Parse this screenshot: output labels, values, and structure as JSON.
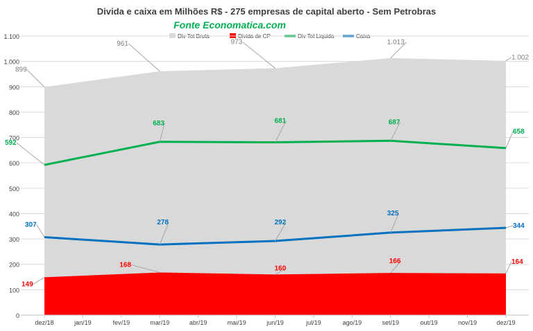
{
  "chart_data": {
    "type": "area",
    "title": "Divida e caixa em Milhões R$ - 275 empresas de capital aberto - Sem Petrobras",
    "subtitle": "Fonte Economatica.com",
    "categories": [
      "dez/18",
      "jan/19",
      "fev/19",
      "mar/19",
      "abr/19",
      "mai/19",
      "jun/19",
      "jul/19",
      "ago/19",
      "set/19",
      "out/19",
      "nov/19",
      "dez/19"
    ],
    "ylim": [
      0,
      1100
    ],
    "yticks": [
      0,
      100,
      200,
      300,
      400,
      500,
      600,
      700,
      800,
      900,
      1000,
      1100
    ],
    "ytick_labels": [
      "0",
      "100",
      "200",
      "300",
      "400",
      "500",
      "600",
      "700",
      "800",
      "900",
      "1.000",
      "1.100"
    ],
    "grid": true,
    "legend_position": "top-right",
    "series": [
      {
        "name": "Div Tot Bruta",
        "kind": "area",
        "color": "#d9d9d9",
        "label_color": "#7f7f7f",
        "points": [
          [
            "dez/18",
            899
          ],
          [
            "mar/19",
            961
          ],
          [
            "jun/19",
            973
          ],
          [
            "set/19",
            1013
          ],
          [
            "dez/19",
            1002
          ]
        ],
        "labels": [
          "899",
          "961",
          "973",
          "1.013",
          "1.002"
        ]
      },
      {
        "name": "Divida de CP",
        "kind": "area",
        "color": "#ff0000",
        "label_color": "#ff0000",
        "points": [
          [
            "dez/18",
            149
          ],
          [
            "mar/19",
            168
          ],
          [
            "jun/19",
            160
          ],
          [
            "set/19",
            166
          ],
          [
            "dez/19",
            164
          ]
        ],
        "labels": [
          "149",
          "168",
          "160",
          "166",
          "164"
        ]
      },
      {
        "name": "Div Tot Liquida",
        "kind": "line",
        "color": "#00b050",
        "label_color": "#00b050",
        "points": [
          [
            "dez/18",
            592
          ],
          [
            "mar/19",
            683
          ],
          [
            "jun/19",
            681
          ],
          [
            "set/19",
            687
          ],
          [
            "dez/19",
            658
          ]
        ],
        "labels": [
          "592",
          "683",
          "681",
          "687",
          "658"
        ]
      },
      {
        "name": "Caixa",
        "kind": "line",
        "color": "#0070c0",
        "label_color": "#0070c0",
        "points": [
          [
            "dez/18",
            307
          ],
          [
            "mar/19",
            278
          ],
          [
            "jun/19",
            292
          ],
          [
            "set/19",
            325
          ],
          [
            "dez/19",
            344
          ]
        ],
        "labels": [
          "307",
          "278",
          "292",
          "325",
          "344"
        ]
      }
    ]
  }
}
